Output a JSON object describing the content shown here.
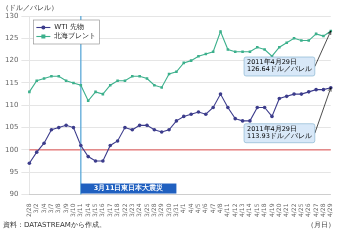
{
  "chart_data": {
    "type": "line",
    "categories": [
      "2/28",
      "3/2",
      "3/4",
      "3/7",
      "3/8",
      "3/9",
      "3/10",
      "3/11",
      "3/14",
      "3/15",
      "3/16",
      "3/17",
      "3/18",
      "3/22",
      "3/23",
      "3/24",
      "3/25",
      "3/28",
      "3/29",
      "3/30",
      "3/31",
      "4/1",
      "4/4",
      "4/5",
      "4/6",
      "4/7",
      "4/8",
      "4/11",
      "4/12",
      "4/13",
      "4/14",
      "4/15",
      "4/18",
      "4/19",
      "4/20",
      "4/21",
      "4/22",
      "4/25",
      "4/26",
      "4/27",
      "4/28",
      "4/29"
    ],
    "series": [
      {
        "name": "WTI 先物",
        "color": "#3c3c8c",
        "marker": "circle",
        "values": [
          97.0,
          99.5,
          101.5,
          104.5,
          105.0,
          105.5,
          105.0,
          101.0,
          98.5,
          97.5,
          97.5,
          101.0,
          102.0,
          105.0,
          104.5,
          105.5,
          105.5,
          104.5,
          104.0,
          104.5,
          106.5,
          107.5,
          108.0,
          108.5,
          108.0,
          109.5,
          112.5,
          109.5,
          107.0,
          106.5,
          106.5,
          109.5,
          109.5,
          107.5,
          111.5,
          112.0,
          112.5,
          112.5,
          113.0,
          113.5,
          113.5,
          113.93
        ]
      },
      {
        "name": "北海ブレント",
        "color": "#3cb08c",
        "marker": "square",
        "values": [
          113.0,
          115.5,
          116.0,
          116.5,
          116.5,
          115.5,
          115.0,
          114.5,
          111.0,
          113.0,
          112.5,
          114.5,
          115.5,
          115.5,
          116.5,
          116.5,
          116.0,
          114.5,
          114.0,
          117.0,
          117.5,
          119.5,
          120.0,
          121.0,
          121.5,
          122.0,
          126.5,
          122.5,
          122.0,
          122.0,
          122.0,
          123.0,
          122.5,
          121.0,
          123.0,
          124.0,
          125.0,
          124.5,
          124.5,
          126.0,
          125.5,
          126.64
        ]
      }
    ],
    "ylabel": "（ドル／バレル）",
    "xlabel": "（月日）",
    "source": "資料：DATASTREAMから作成。",
    "ylim": [
      90,
      130
    ],
    "yticks": [
      90,
      95,
      100,
      105,
      110,
      115,
      120,
      125,
      130
    ],
    "grid": true,
    "legend": "upper left",
    "hline": {
      "y": 100,
      "color": "#e05050"
    },
    "vline": {
      "x": "3/11",
      "color": "#5ba8d8",
      "label": "3月11日東日本大震災",
      "label_color": "#2060c0",
      "label_span": [
        "3/11",
        "3/31"
      ]
    },
    "annotations": [
      {
        "text": "2011年4月29日\n126.64ドル／バレル",
        "x": "4/29",
        "y": 126.64,
        "color": "#d8e8f8"
      },
      {
        "text": "2011年4月29日\n113.93ドル／バレル",
        "x": "4/29",
        "y": 113.93,
        "color": "#d8e8f8"
      }
    ]
  }
}
